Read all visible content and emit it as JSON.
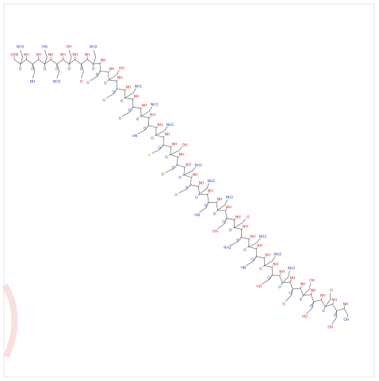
{
  "molecule": {
    "atom_labels": [
      "H2N",
      "O",
      "NH",
      "O",
      "NH",
      "O",
      "NH",
      "O",
      "NH",
      "O",
      "NH",
      "O",
      "NH",
      "O",
      "NH",
      "O",
      "NH",
      "O",
      "NH",
      "O",
      "NH",
      "O",
      "NH",
      "O",
      "NH",
      "O",
      "NH",
      "O",
      "NH",
      "O",
      "NH",
      "O",
      "NH",
      "O",
      "NH",
      "O",
      "NH",
      "O",
      "NH",
      "O",
      "NH",
      "O",
      "NH",
      "O",
      "NH",
      "O",
      "NH",
      "O",
      "NH",
      "O",
      "NH",
      "O",
      "NH",
      "O",
      "NH",
      "O",
      "NH",
      "O",
      "NH",
      "O",
      "NH",
      "O",
      "NH",
      "O",
      "NH",
      "O",
      "NH",
      "O",
      "NH",
      "O",
      "NH",
      "O",
      "NH",
      "OH"
    ],
    "side_labels": [
      "NH2",
      "NH",
      "HN",
      "NH2",
      "OH",
      "O",
      "NH2",
      "O",
      "OH",
      "O",
      "NH2",
      "O",
      "NH2",
      "HN",
      "NH2",
      "S",
      "OH",
      "O",
      "NH2",
      "O",
      "NH2",
      "HN",
      "NH2",
      "OH",
      "O",
      "NH2",
      "NH2",
      "HN",
      "NH2",
      "HO",
      "NH2",
      "O",
      "OH",
      "HO",
      "O",
      "OH"
    ]
  }
}
